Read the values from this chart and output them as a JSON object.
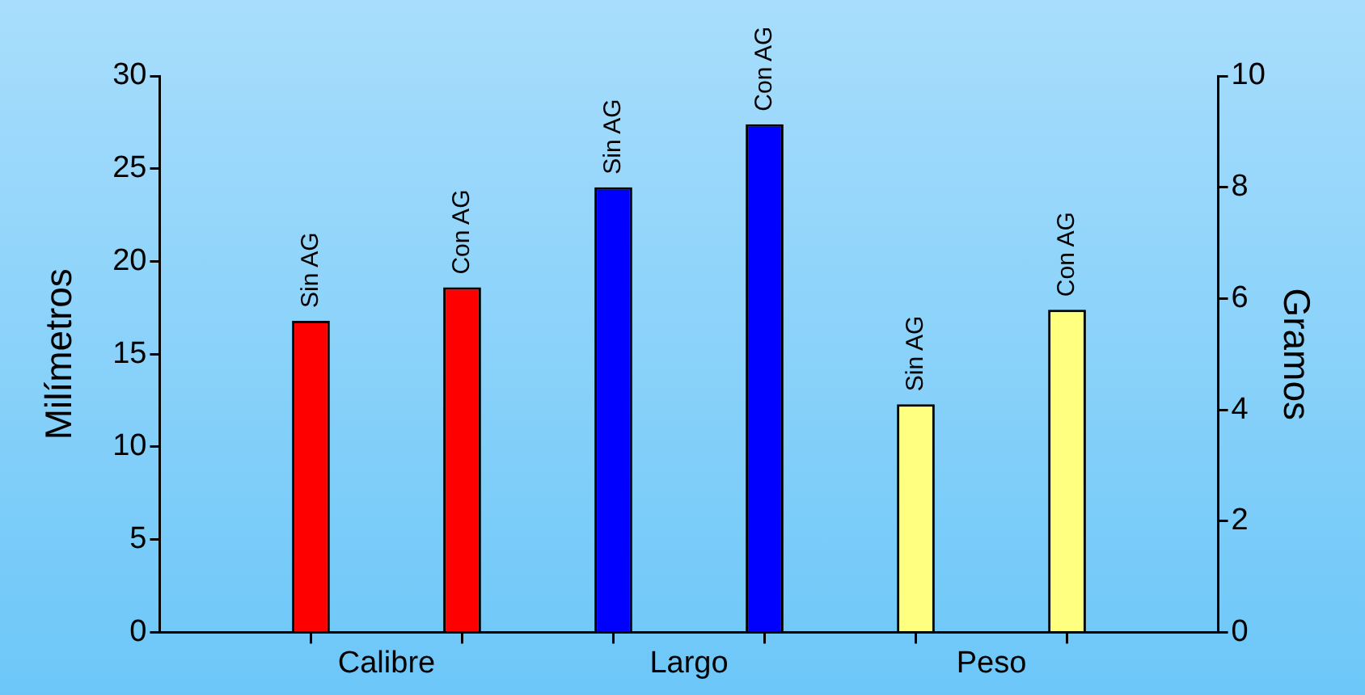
{
  "chart_data": {
    "type": "bar",
    "categories": [
      "Calibre",
      "Largo",
      "Peso"
    ],
    "ylabel": "Milímetros",
    "y2label": "Gramos",
    "ylim": [
      0,
      30
    ],
    "yticks": [
      0,
      5,
      10,
      15,
      20,
      25,
      30
    ],
    "y2lim": [
      0,
      10
    ],
    "y2ticks": [
      0,
      2,
      4,
      6,
      8,
      10
    ],
    "grid": false,
    "legend": false,
    "series": [
      {
        "name": "Sin AG",
        "colors": [
          "#ff0000",
          "#0000ff",
          null
        ],
        "values": [
          16.8,
          24.0,
          null
        ]
      },
      {
        "name": "Con AG",
        "colors": [
          "#ff0000",
          "#0000ff",
          null
        ],
        "values": [
          18.6,
          27.4,
          null
        ]
      },
      {
        "name": "Sin AG",
        "axis": "y2",
        "color": "#ffff80",
        "values": [
          null,
          null,
          4.1
        ]
      },
      {
        "name": "Con AG",
        "axis": "y2",
        "color": "#ffff80",
        "values": [
          null,
          null,
          5.8
        ]
      }
    ]
  }
}
